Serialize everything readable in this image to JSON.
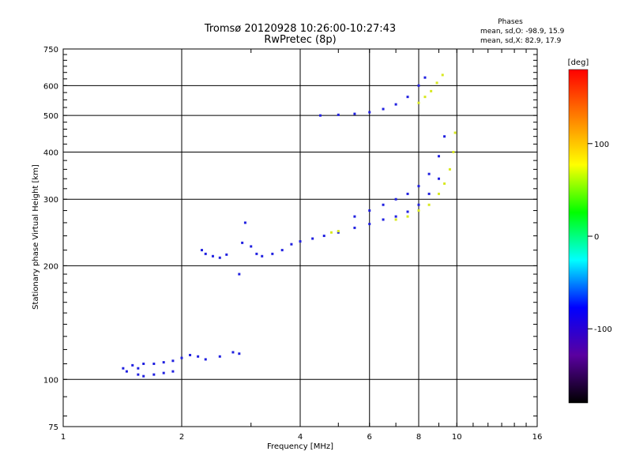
{
  "chart_data": {
    "type": "scatter",
    "title": "Tromsø 20120928 10:26:00-10:27:43",
    "subtitle": "RwPretec (8p)",
    "xlabel": "Frequency [MHz]",
    "ylabel": "Stationary phase Virtual Height [km]",
    "x_scale": "log",
    "y_scale": "log",
    "xlim": [
      1,
      16
    ],
    "ylim": [
      75,
      750
    ],
    "x_ticks": [
      1,
      2,
      4,
      6,
      8,
      10,
      16
    ],
    "y_ticks": [
      75,
      100,
      200,
      300,
      400,
      500,
      600,
      750
    ],
    "grid": true,
    "phases_box": {
      "heading": "Phases",
      "line1": "mean, sd,O: -98.9, 15.9",
      "line2": "mean, sd,X:  82.9, 17.9"
    },
    "colorbar": {
      "label": "[deg]",
      "range": [
        -180,
        180
      ],
      "ticks": [
        -100,
        0,
        100
      ],
      "colormap": "rainbow",
      "colors": [
        "#000000",
        "#5a00a0",
        "#0000ff",
        "#00ffff",
        "#00ff00",
        "#ffff00",
        "#ff8000",
        "#ff0000"
      ]
    },
    "series": [
      {
        "points": [
          [
            1.42,
            107
          ],
          [
            1.45,
            105
          ],
          [
            1.5,
            109
          ],
          [
            1.55,
            107
          ],
          [
            1.6,
            110
          ],
          [
            1.7,
            110
          ],
          [
            1.8,
            111
          ],
          [
            1.9,
            112
          ],
          [
            2.0,
            114
          ],
          [
            2.1,
            116
          ],
          [
            2.2,
            115
          ],
          [
            2.3,
            113
          ],
          [
            2.5,
            115
          ],
          [
            2.7,
            118
          ],
          [
            2.8,
            117
          ],
          [
            1.55,
            103
          ],
          [
            1.6,
            102
          ],
          [
            1.7,
            103
          ],
          [
            1.8,
            104
          ],
          [
            1.9,
            105
          ],
          [
            2.25,
            220
          ],
          [
            2.3,
            215
          ],
          [
            2.4,
            212
          ],
          [
            2.5,
            210
          ],
          [
            2.6,
            214
          ],
          [
            2.8,
            190
          ],
          [
            2.85,
            230
          ],
          [
            2.9,
            260
          ],
          [
            3.0,
            225
          ],
          [
            3.1,
            215
          ],
          [
            3.2,
            212
          ],
          [
            3.4,
            215
          ],
          [
            3.6,
            220
          ],
          [
            3.8,
            228
          ],
          [
            4.0,
            232
          ],
          [
            4.3,
            236
          ],
          [
            4.6,
            240
          ],
          [
            5.0,
            245
          ],
          [
            5.5,
            252
          ],
          [
            6.0,
            258
          ],
          [
            6.5,
            265
          ],
          [
            7.0,
            270
          ],
          [
            7.5,
            278
          ],
          [
            8.0,
            290
          ],
          [
            8.5,
            310
          ],
          [
            9.0,
            340
          ],
          [
            5.5,
            270
          ],
          [
            6.0,
            280
          ],
          [
            6.5,
            290
          ],
          [
            7.0,
            300
          ],
          [
            7.5,
            310
          ],
          [
            8.0,
            325
          ],
          [
            8.5,
            350
          ],
          [
            9.0,
            390
          ],
          [
            9.3,
            440
          ],
          [
            4.5,
            500
          ],
          [
            5.0,
            502
          ],
          [
            5.5,
            505
          ],
          [
            6.0,
            510
          ],
          [
            6.5,
            520
          ],
          [
            7.0,
            535
          ],
          [
            7.5,
            560
          ],
          [
            8.0,
            600
          ],
          [
            8.3,
            630
          ]
        ]
      },
      {
        "points": [
          [
            7.0,
            265
          ],
          [
            7.5,
            270
          ],
          [
            8.0,
            280
          ],
          [
            8.5,
            290
          ],
          [
            9.0,
            310
          ],
          [
            9.3,
            330
          ],
          [
            9.6,
            360
          ],
          [
            9.8,
            400
          ],
          [
            9.9,
            450
          ],
          [
            8.0,
            540
          ],
          [
            8.3,
            560
          ],
          [
            8.6,
            580
          ],
          [
            8.9,
            610
          ],
          [
            9.2,
            640
          ],
          [
            4.8,
            245
          ],
          [
            5.0,
            247
          ]
        ]
      }
    ]
  }
}
